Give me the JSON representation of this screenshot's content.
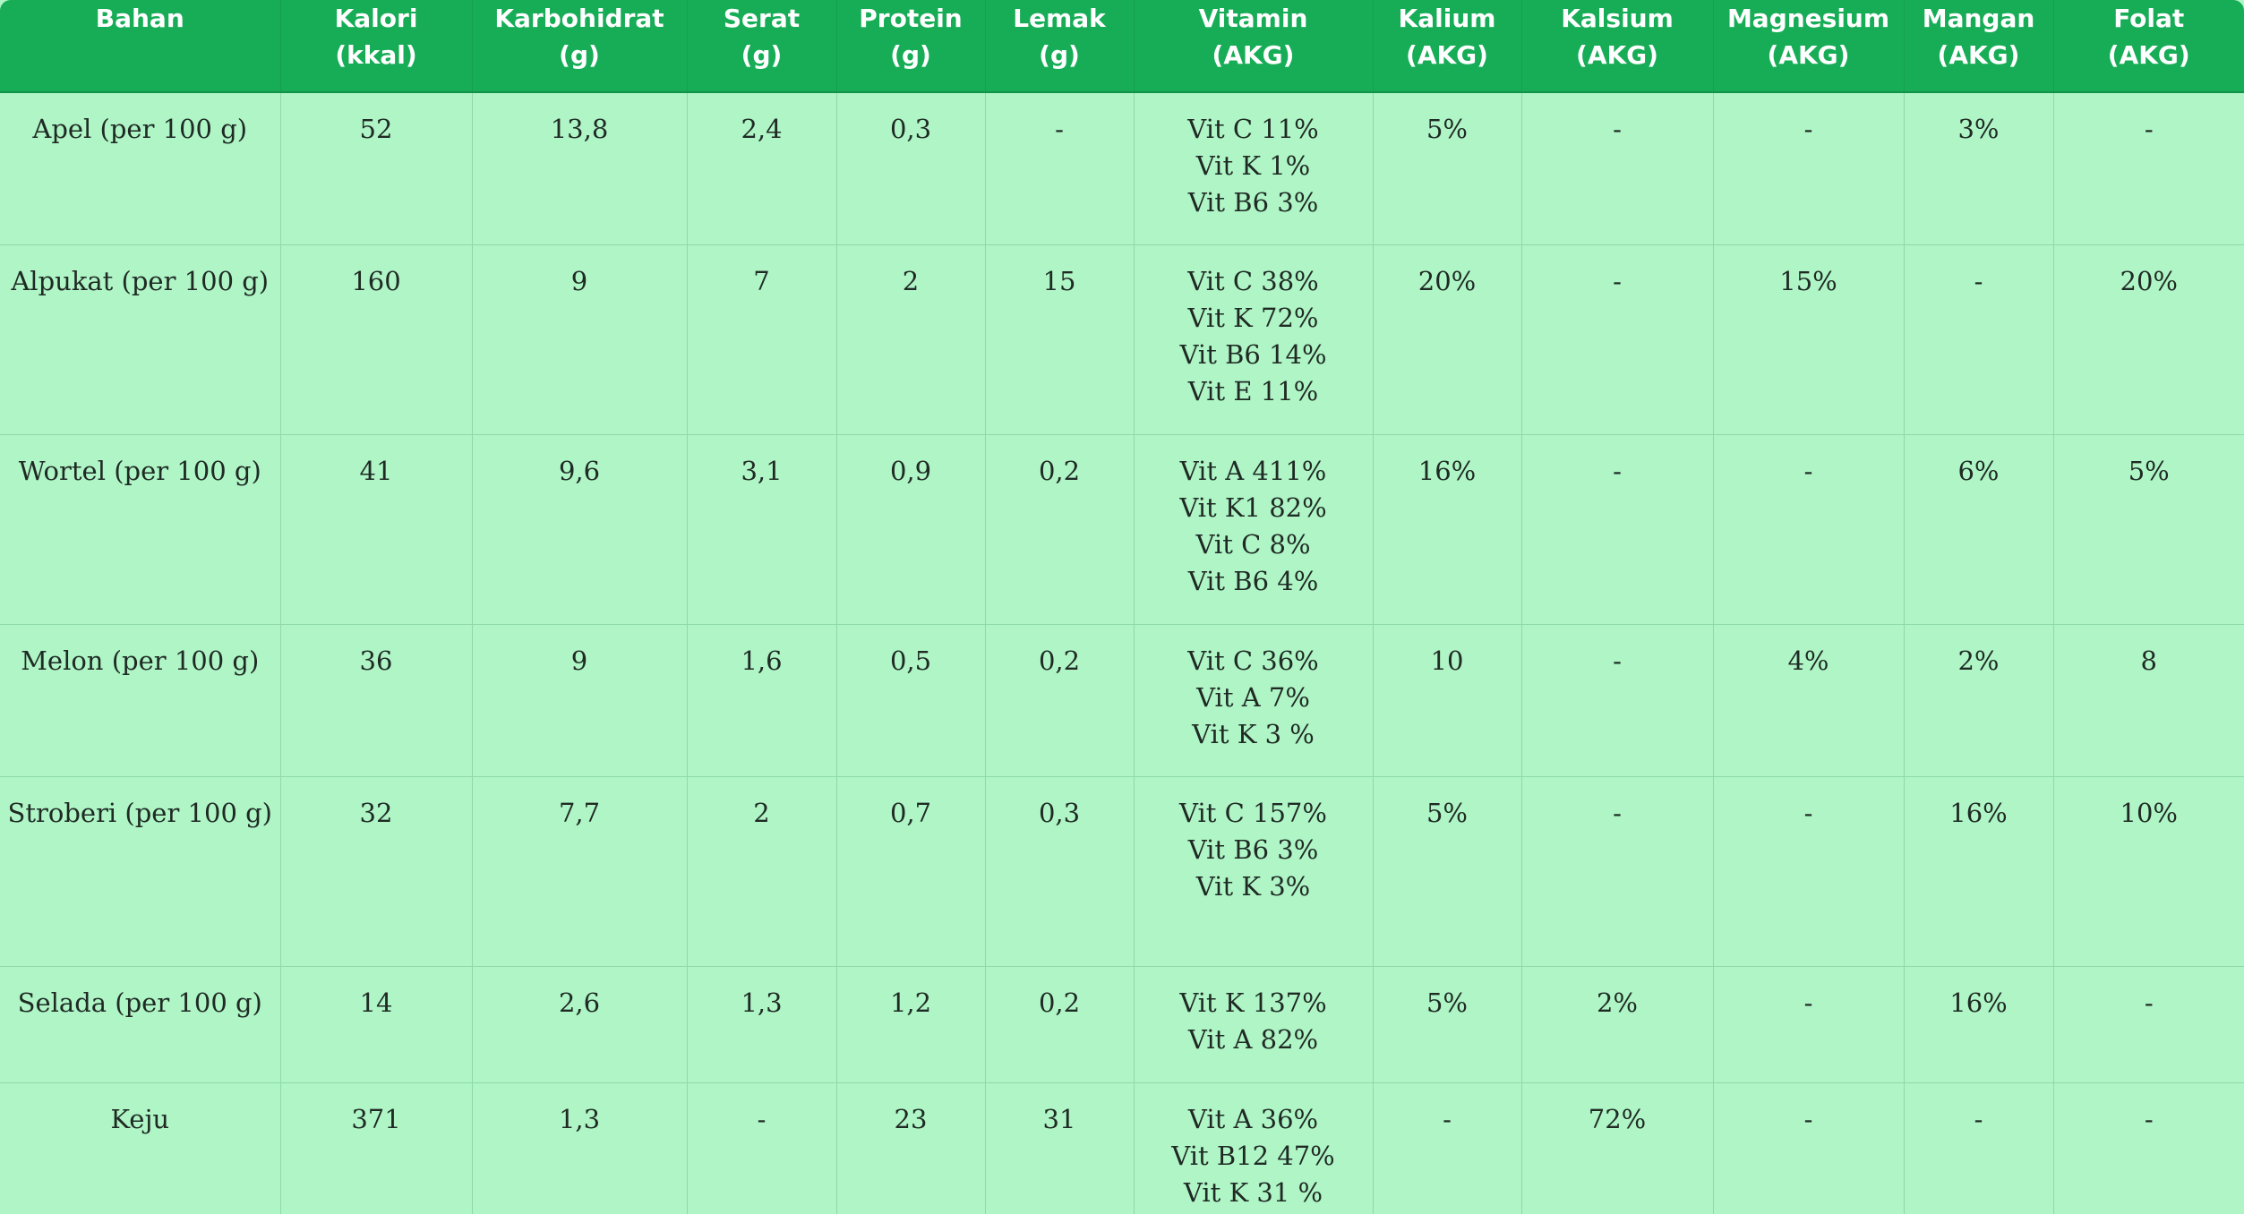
{
  "headers": [
    [
      "Bahan",
      ""
    ],
    [
      "Kalori",
      "(kkal)"
    ],
    [
      "Karbohidrat",
      "(g)"
    ],
    [
      "Serat",
      "(g)"
    ],
    [
      "Protein",
      "(g)"
    ],
    [
      "Lemak",
      "(g)"
    ],
    [
      "Vitamin",
      "(AKG)"
    ],
    [
      "Kalium",
      "(AKG)"
    ],
    [
      "Kalsium",
      "(AKG)"
    ],
    [
      "Magnesium",
      "(AKG)"
    ],
    [
      "Mangan",
      "(AKG)"
    ],
    [
      "Folat",
      "(AKG)"
    ]
  ],
  "rows": [
    {
      "bahan": "Apel (per 100 g)",
      "kalori": "52",
      "karbohidrat": "13,8",
      "serat": "2,4",
      "protein": "0,3",
      "lemak": "-",
      "vitamin": [
        "Vit C 11%",
        "Vit K 1%",
        "Vit B6 3%"
      ],
      "kalium": "5%",
      "kalsium": "-",
      "magnesium": "-",
      "mangan": "3%",
      "folat": "-"
    },
    {
      "bahan": "Alpukat (per 100 g)",
      "kalori": "160",
      "karbohidrat": "9",
      "serat": "7",
      "protein": "2",
      "lemak": "15",
      "vitamin": [
        "Vit C 38%",
        "Vit K 72%",
        "Vit B6 14%",
        "Vit E 11%"
      ],
      "kalium": "20%",
      "kalsium": "-",
      "magnesium": "15%",
      "mangan": "-",
      "folat": "20%"
    },
    {
      "bahan": "Wortel (per 100 g)",
      "kalori": "41",
      "karbohidrat": "9,6",
      "serat": "3,1",
      "protein": "0,9",
      "lemak": "0,2",
      "vitamin": [
        "Vit A 411%",
        "Vit K1 82%",
        "Vit C 8%",
        "Vit B6 4%"
      ],
      "kalium": "16%",
      "kalsium": "-",
      "magnesium": "-",
      "mangan": "6%",
      "folat": "5%"
    },
    {
      "bahan": "Melon (per 100 g)",
      "kalori": "36",
      "karbohidrat": "9",
      "serat": "1,6",
      "protein": "0,5",
      "lemak": "0,2",
      "vitamin": [
        "Vit C 36%",
        "Vit A 7%",
        "Vit K 3 %"
      ],
      "kalium": "10",
      "kalsium": "-",
      "magnesium": "4%",
      "mangan": "2%",
      "folat": "8"
    },
    {
      "bahan": "Stroberi (per 100 g)",
      "kalori": "32",
      "karbohidrat": "7,7",
      "serat": "2",
      "protein": "0,7",
      "lemak": "0,3",
      "vitamin": [
        "Vit C 157%",
        "Vit B6 3%",
        "Vit K 3%"
      ],
      "kalium": "5%",
      "kalsium": "-",
      "magnesium": "-",
      "mangan": "16%",
      "folat": "10%"
    },
    {
      "bahan": "Selada (per 100 g)",
      "kalori": "14",
      "karbohidrat": "2,6",
      "serat": "1,3",
      "protein": "1,2",
      "lemak": "0,2",
      "vitamin": [
        "Vit K 137%",
        "Vit A 82%"
      ],
      "kalium": "5%",
      "kalsium": "2%",
      "magnesium": "-",
      "mangan": "16%",
      "folat": "-"
    },
    {
      "bahan": "Keju",
      "kalori": "371",
      "karbohidrat": "1,3",
      "serat": "-",
      "protein": "23",
      "lemak": "31",
      "vitamin": [
        "Vit A 36%",
        "Vit B12 47%",
        "Vit K 31 %"
      ],
      "kalium": "-",
      "kalsium": "72%",
      "magnesium": "-",
      "mangan": "-",
      "folat": "-"
    }
  ]
}
